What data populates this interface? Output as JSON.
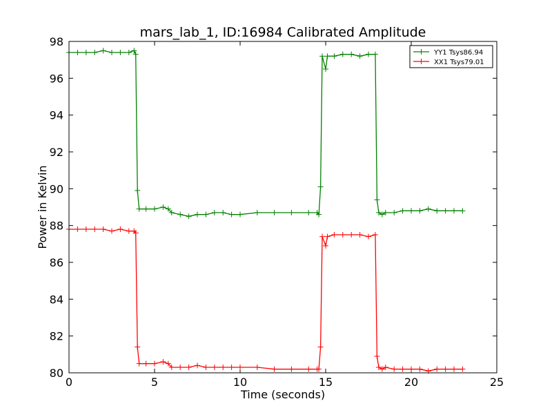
{
  "chart_data": {
    "type": "line",
    "title": "mars_lab_1, ID:16984 Calibrated Amplitude",
    "xlabel": "Time (seconds)",
    "ylabel": "Power in Kelvin",
    "xlim": [
      0,
      25
    ],
    "ylim": [
      80,
      98
    ],
    "xticks": [
      0,
      5,
      10,
      15,
      20,
      25
    ],
    "yticks": [
      80,
      82,
      84,
      86,
      88,
      90,
      92,
      94,
      96,
      98
    ],
    "grid": false,
    "legend_position": "top-right",
    "marker": "+",
    "series": [
      {
        "name": "YY1 Tsys86.94",
        "color": "#008000",
        "x": [
          0.0,
          0.5,
          1.0,
          1.5,
          2.0,
          2.5,
          3.0,
          3.5,
          3.8,
          3.9,
          4.0,
          4.1,
          4.5,
          5.0,
          5.5,
          5.8,
          6.0,
          6.5,
          7.0,
          7.5,
          8.0,
          8.5,
          9.0,
          9.5,
          10.0,
          11.0,
          12.0,
          13.0,
          14.0,
          14.5,
          14.6,
          14.7,
          14.8,
          15.0,
          15.1,
          15.5,
          16.0,
          16.5,
          17.0,
          17.5,
          17.9,
          18.0,
          18.1,
          18.3,
          18.5,
          19.0,
          19.5,
          20.0,
          20.5,
          21.0,
          21.5,
          22.0,
          22.5,
          23.0
        ],
        "y": [
          97.4,
          97.4,
          97.4,
          97.4,
          97.5,
          97.4,
          97.4,
          97.4,
          97.5,
          97.3,
          89.9,
          88.9,
          88.9,
          88.9,
          89.0,
          88.9,
          88.7,
          88.6,
          88.5,
          88.6,
          88.6,
          88.7,
          88.7,
          88.6,
          88.6,
          88.7,
          88.7,
          88.7,
          88.7,
          88.7,
          88.6,
          90.1,
          97.2,
          96.5,
          97.2,
          97.2,
          97.3,
          97.3,
          97.2,
          97.3,
          97.3,
          89.4,
          88.7,
          88.6,
          88.7,
          88.7,
          88.8,
          88.8,
          88.8,
          88.9,
          88.8,
          88.8,
          88.8,
          88.8
        ]
      },
      {
        "name": "XX1 Tsys79.01",
        "color": "#ff0000",
        "x": [
          0.0,
          0.5,
          1.0,
          1.5,
          2.0,
          2.5,
          3.0,
          3.5,
          3.8,
          3.9,
          4.0,
          4.1,
          4.5,
          5.0,
          5.5,
          5.8,
          6.0,
          6.5,
          7.0,
          7.5,
          8.0,
          8.5,
          9.0,
          9.5,
          10.0,
          11.0,
          12.0,
          13.0,
          14.0,
          14.5,
          14.6,
          14.7,
          14.8,
          15.0,
          15.1,
          15.5,
          16.0,
          16.5,
          17.0,
          17.5,
          17.9,
          18.0,
          18.1,
          18.3,
          18.5,
          19.0,
          19.5,
          20.0,
          20.5,
          21.0,
          21.5,
          22.0,
          22.5,
          23.0
        ],
        "y": [
          87.8,
          87.8,
          87.8,
          87.8,
          87.8,
          87.7,
          87.8,
          87.7,
          87.7,
          87.6,
          81.4,
          80.5,
          80.5,
          80.5,
          80.6,
          80.5,
          80.3,
          80.3,
          80.3,
          80.4,
          80.3,
          80.3,
          80.3,
          80.3,
          80.3,
          80.3,
          80.2,
          80.2,
          80.2,
          80.2,
          80.2,
          81.4,
          87.4,
          86.9,
          87.4,
          87.5,
          87.5,
          87.5,
          87.5,
          87.4,
          87.5,
          80.9,
          80.3,
          80.2,
          80.3,
          80.2,
          80.2,
          80.2,
          80.2,
          80.1,
          80.2,
          80.2,
          80.2,
          80.2
        ]
      }
    ]
  }
}
